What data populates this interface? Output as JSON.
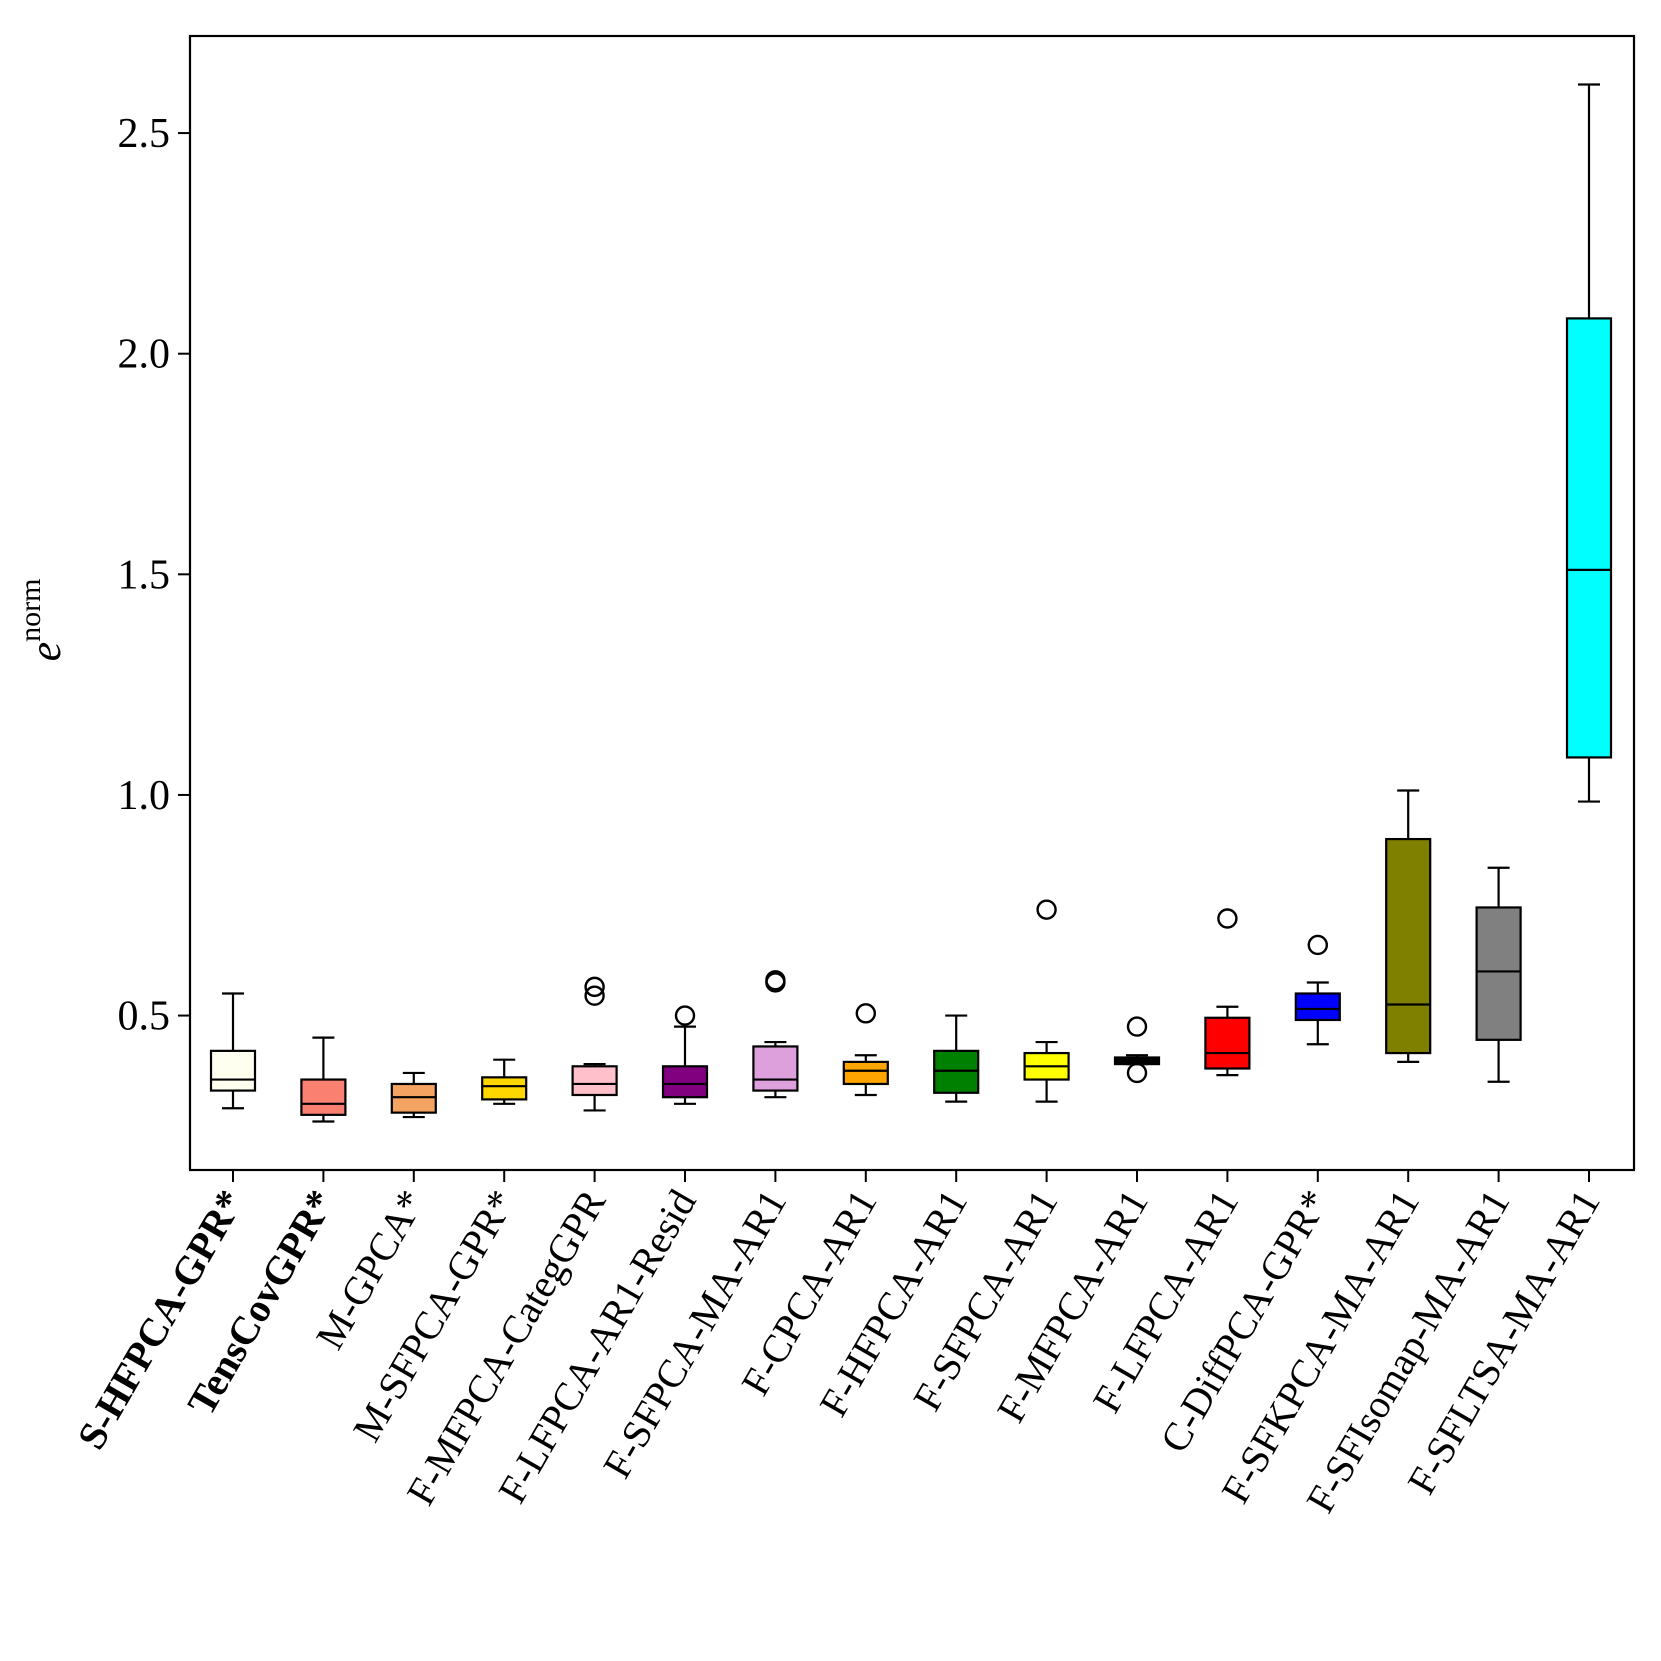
{
  "chart_data": {
    "type": "box",
    "xlabel": "",
    "ylabel": "e",
    "ylabel_superscript": "norm",
    "ylim": [
      0.15,
      2.72
    ],
    "yticks": [
      0.5,
      1.0,
      1.5,
      2.0,
      2.5
    ],
    "ytick_labels": [
      "0.5",
      "1.0",
      "1.5",
      "2.0",
      "2.5"
    ],
    "grid": false,
    "legend": "none",
    "categories": [
      "S-HFPCA-GPR*",
      "TensCovGPR*",
      "M-GPCA*",
      "M-SFPCA-GPR*",
      "F-MFPCA-CategGPR",
      "F-LFPCA-AR1-Resid",
      "F-SFPCA-MA-AR1",
      "F-CPCA-AR1",
      "F-HFPCA-AR1",
      "F-SFPCA-AR1",
      "F-MFPCA-AR1",
      "F-LFPCA-AR1",
      "C-DiffPCA-GPR*",
      "F-SFKPCA-MA-AR1",
      "F-SFIsomap-MA-AR1",
      "F-SFLTSA-MA-AR1"
    ],
    "bold_categories": [
      "S-HFPCA-GPR*",
      "TensCovGPR*"
    ],
    "boxes": [
      {
        "whisker_low": 0.29,
        "q1": 0.33,
        "median": 0.355,
        "q3": 0.42,
        "whisker_high": 0.55,
        "outliers": [],
        "color": "#fffff0"
      },
      {
        "whisker_low": 0.26,
        "q1": 0.275,
        "median": 0.3,
        "q3": 0.355,
        "whisker_high": 0.45,
        "outliers": [],
        "color": "#fa8072"
      },
      {
        "whisker_low": 0.27,
        "q1": 0.28,
        "median": 0.315,
        "q3": 0.345,
        "whisker_high": 0.37,
        "outliers": [],
        "color": "#f4a460"
      },
      {
        "whisker_low": 0.3,
        "q1": 0.31,
        "median": 0.34,
        "q3": 0.36,
        "whisker_high": 0.4,
        "outliers": [],
        "color": "#ffd700"
      },
      {
        "whisker_low": 0.285,
        "q1": 0.32,
        "median": 0.345,
        "q3": 0.385,
        "whisker_high": 0.39,
        "outliers": [
          0.545,
          0.565
        ],
        "color": "#ffc0cb"
      },
      {
        "whisker_low": 0.3,
        "q1": 0.315,
        "median": 0.345,
        "q3": 0.385,
        "whisker_high": 0.475,
        "outliers": [
          0.5
        ],
        "color": "#800080"
      },
      {
        "whisker_low": 0.315,
        "q1": 0.33,
        "median": 0.355,
        "q3": 0.43,
        "whisker_high": 0.44,
        "outliers": [
          0.575,
          0.58
        ],
        "color": "#dda0dd"
      },
      {
        "whisker_low": 0.32,
        "q1": 0.345,
        "median": 0.375,
        "q3": 0.395,
        "whisker_high": 0.41,
        "outliers": [
          0.505
        ],
        "color": "#ffa500"
      },
      {
        "whisker_low": 0.305,
        "q1": 0.325,
        "median": 0.375,
        "q3": 0.42,
        "whisker_high": 0.5,
        "outliers": [],
        "color": "#008000"
      },
      {
        "whisker_low": 0.305,
        "q1": 0.355,
        "median": 0.385,
        "q3": 0.415,
        "whisker_high": 0.44,
        "outliers": [
          0.74
        ],
        "color": "#ffff00"
      },
      {
        "whisker_low": 0.39,
        "q1": 0.39,
        "median": 0.4,
        "q3": 0.405,
        "whisker_high": 0.41,
        "outliers": [
          0.475,
          0.37
        ],
        "color": "#000000"
      },
      {
        "whisker_low": 0.365,
        "q1": 0.38,
        "median": 0.415,
        "q3": 0.495,
        "whisker_high": 0.52,
        "outliers": [
          0.72
        ],
        "color": "#ff0000"
      },
      {
        "whisker_low": 0.435,
        "q1": 0.49,
        "median": 0.515,
        "q3": 0.55,
        "whisker_high": 0.575,
        "outliers": [
          0.66
        ],
        "color": "#0000ff"
      },
      {
        "whisker_low": 0.395,
        "q1": 0.415,
        "median": 0.525,
        "q3": 0.9,
        "whisker_high": 1.01,
        "outliers": [],
        "color": "#808000"
      },
      {
        "whisker_low": 0.35,
        "q1": 0.445,
        "median": 0.6,
        "q3": 0.745,
        "whisker_high": 0.835,
        "outliers": [],
        "color": "#808080"
      },
      {
        "whisker_low": 0.985,
        "q1": 1.085,
        "median": 1.51,
        "q3": 2.08,
        "whisker_high": 2.61,
        "outliers": [],
        "color": "#00ffff"
      }
    ]
  }
}
